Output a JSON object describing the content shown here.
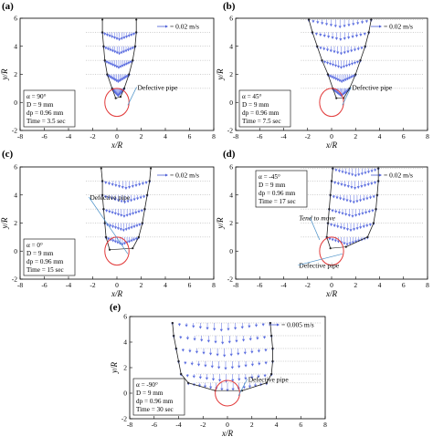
{
  "chart_data": [
    {
      "type": "scatter",
      "panel_label": "(a)",
      "xlabel": "x/R",
      "ylabel": "y/R",
      "xlim": [
        -8,
        8
      ],
      "ylim": [
        -2,
        6
      ],
      "xticks": [
        "-8",
        "-6",
        "-4",
        "-2",
        "0",
        "2",
        "4",
        "6",
        "8"
      ],
      "yticks": [
        "6",
        "4",
        "2",
        "0",
        "-2"
      ],
      "scale_label": "= 0.02 m/s",
      "params": [
        "α = 90°",
        "D = 9 mm",
        "dp = 0.96 mm",
        "Time = 3.5 sec"
      ],
      "annotations": [
        "Defective pipe"
      ],
      "boundary_left": [
        [
          -1.2,
          5.9
        ],
        [
          -1.2,
          5
        ],
        [
          -1.1,
          4
        ],
        [
          -1.0,
          3
        ],
        [
          -0.8,
          2
        ],
        [
          -0.4,
          1
        ],
        [
          -0.1,
          0.3
        ]
      ],
      "boundary_right": [
        [
          1.6,
          5.9
        ],
        [
          1.6,
          5
        ],
        [
          1.5,
          4
        ],
        [
          1.3,
          3
        ],
        [
          1.0,
          2
        ],
        [
          0.6,
          1
        ],
        [
          0.3,
          0.4
        ]
      ],
      "row_levels": [
        5,
        4,
        3,
        2,
        1
      ]
    },
    {
      "type": "scatter",
      "panel_label": "(b)",
      "xlabel": "x/R",
      "ylabel": "y/R",
      "xlim": [
        -8,
        8
      ],
      "ylim": [
        -2,
        6
      ],
      "xticks": [
        "-8",
        "-6",
        "-4",
        "-2",
        "0",
        "2",
        "4",
        "6",
        "8"
      ],
      "yticks": [
        "6",
        "4",
        "2",
        "0",
        "-2"
      ],
      "scale_label": "= 0.02 m/s",
      "params": [
        "α = 45°",
        "D = 9 mm",
        "dp = 0.96 mm",
        "Time = 7.5 sec"
      ],
      "annotations": [
        "Defective pipe"
      ],
      "boundary_left": [
        [
          -1.9,
          5.9
        ],
        [
          -1.6,
          5
        ],
        [
          -1.2,
          4
        ],
        [
          -0.8,
          3
        ],
        [
          -0.3,
          2
        ],
        [
          0.1,
          1
        ],
        [
          0.4,
          0.3
        ]
      ],
      "boundary_right": [
        [
          3.3,
          5.9
        ],
        [
          3.1,
          5
        ],
        [
          2.8,
          4
        ],
        [
          2.4,
          3
        ],
        [
          2.0,
          2
        ],
        [
          1.5,
          1
        ],
        [
          1.0,
          0.3
        ]
      ],
      "row_levels": [
        5.9,
        5,
        4,
        3,
        2,
        1
      ]
    },
    {
      "type": "scatter",
      "panel_label": "(c)",
      "xlabel": "x/R",
      "ylabel": "y/R",
      "xlim": [
        -8,
        8
      ],
      "ylim": [
        -2,
        6
      ],
      "xticks": [
        "-8",
        "-6",
        "-4",
        "-2",
        "0",
        "2",
        "4",
        "6",
        "8"
      ],
      "yticks": [
        "6",
        "4",
        "2",
        "0",
        "-2"
      ],
      "scale_label": "= 0.02 m/s",
      "params": [
        "α = 0°",
        "D = 9 mm",
        "dp = 0.96 mm",
        "Time = 15 sec"
      ],
      "annotations": [
        "Defective pipe"
      ],
      "boundary_left": [
        [
          -1.3,
          5.9
        ],
        [
          -1.2,
          5
        ],
        [
          -1.2,
          4
        ],
        [
          -1.1,
          3
        ],
        [
          -1.0,
          2
        ],
        [
          -0.9,
          1
        ],
        [
          -0.6,
          0.1
        ]
      ],
      "boundary_right": [
        [
          2.8,
          5.9
        ],
        [
          2.7,
          5
        ],
        [
          2.5,
          4
        ],
        [
          2.3,
          3
        ],
        [
          2.1,
          2
        ],
        [
          1.8,
          1
        ],
        [
          1.3,
          0.2
        ]
      ],
      "row_levels": [
        5,
        4,
        3,
        2,
        1
      ]
    },
    {
      "type": "scatter",
      "panel_label": "(d)",
      "xlabel": "x/R",
      "ylabel": "y/R",
      "xlim": [
        -8,
        8
      ],
      "ylim": [
        -2,
        6
      ],
      "xticks": [
        "-8",
        "-6",
        "-4",
        "-2",
        "0",
        "2",
        "4",
        "6",
        "8"
      ],
      "yticks": [
        "6",
        "4",
        "2",
        "0",
        "-2"
      ],
      "scale_label": "= 0.02 m/s",
      "params": [
        "α = -45°",
        "D = 9 mm",
        "dp = 0.96 mm",
        "Time = 17 sec"
      ],
      "annotations": [
        "Tend to move",
        "Defective pipe"
      ],
      "boundary_left": [
        [
          0.1,
          5.9
        ],
        [
          0.0,
          5
        ],
        [
          -0.1,
          4
        ],
        [
          -0.2,
          3
        ],
        [
          -0.3,
          2
        ],
        [
          -0.4,
          1
        ],
        [
          -0.1,
          0.2
        ]
      ],
      "boundary_right": [
        [
          3.9,
          5.9
        ],
        [
          3.9,
          5
        ],
        [
          3.8,
          4
        ],
        [
          3.7,
          3
        ],
        [
          3.5,
          2
        ],
        [
          3.0,
          1
        ],
        [
          1.2,
          0.3
        ]
      ],
      "row_levels": [
        5.9,
        5,
        4,
        3,
        2,
        1
      ]
    },
    {
      "type": "scatter",
      "panel_label": "(e)",
      "xlabel": "x/R",
      "ylabel": "y/R",
      "xlim": [
        -8,
        8
      ],
      "ylim": [
        -2,
        6
      ],
      "xticks": [
        "-8",
        "-6",
        "-4",
        "-2",
        "0",
        "2",
        "4",
        "6",
        "8"
      ],
      "yticks": [
        "6",
        "4",
        "2",
        "0",
        "-2"
      ],
      "scale_label": "= 0.005 m/s",
      "params": [
        "α = -90°",
        "D = 9 mm",
        "dp = 0.96 mm",
        "Time = 30 sec"
      ],
      "annotations": [
        "Defective pipe"
      ],
      "boundary_left": [
        [
          -4.5,
          5.5
        ],
        [
          -4.4,
          4.5
        ],
        [
          -4.2,
          3.5
        ],
        [
          -4.0,
          2.5
        ],
        [
          -3.8,
          1.5
        ],
        [
          -3.2,
          0.8
        ],
        [
          -1.0,
          0.2
        ]
      ],
      "boundary_right": [
        [
          3.5,
          5.5
        ],
        [
          3.6,
          4.5
        ],
        [
          3.7,
          3.5
        ],
        [
          3.7,
          2.5
        ],
        [
          3.6,
          1.5
        ],
        [
          3.2,
          0.8
        ],
        [
          1.2,
          0.2
        ]
      ],
      "row_levels": [
        5.5,
        4.5,
        3.5,
        2.5,
        1.5,
        0.8
      ]
    }
  ]
}
